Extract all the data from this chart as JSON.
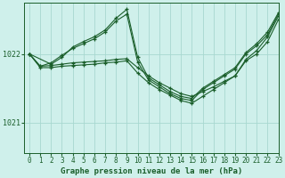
{
  "background_color": "#cff0eb",
  "grid_color": "#a8d8d0",
  "line_color": "#1a5e2a",
  "xlabel": "Graphe pression niveau de la mer (hPa)",
  "xlabel_fontsize": 6.5,
  "ylabel_ticks": [
    1021,
    1022
  ],
  "xlim": [
    -0.5,
    23
  ],
  "ylim": [
    1020.55,
    1022.75
  ],
  "tick_fontsize": 5.5,
  "series": [
    {
      "x": [
        0,
        1,
        2,
        3,
        4,
        5,
        6,
        7,
        8,
        9,
        10,
        11,
        12,
        13,
        14,
        15,
        16,
        17,
        18,
        19,
        20,
        21,
        22,
        23
      ],
      "y": [
        1022.0,
        1021.82,
        1021.83,
        1021.85,
        1021.87,
        1021.88,
        1021.89,
        1021.9,
        1021.92,
        1021.93,
        1021.8,
        1021.68,
        1021.58,
        1021.5,
        1021.42,
        1021.38,
        1021.45,
        1021.52,
        1021.6,
        1021.68,
        1021.9,
        1022.0,
        1022.18,
        1022.5
      ]
    },
    {
      "x": [
        0,
        1,
        2,
        3,
        4,
        5,
        6,
        7,
        8,
        9,
        10,
        11,
        12,
        13,
        14,
        15,
        16,
        17,
        18,
        19,
        20,
        21,
        22,
        23
      ],
      "y": [
        1022.0,
        1021.8,
        1021.8,
        1021.82,
        1021.83,
        1021.84,
        1021.85,
        1021.87,
        1021.88,
        1021.9,
        1021.72,
        1021.58,
        1021.48,
        1021.4,
        1021.32,
        1021.28,
        1021.38,
        1021.48,
        1021.58,
        1021.68,
        1021.92,
        1022.05,
        1022.25,
        1022.55
      ]
    },
    {
      "x": [
        0,
        1,
        2,
        3,
        4,
        5,
        6,
        7,
        8,
        9,
        10,
        11,
        12,
        13,
        14,
        15,
        16,
        17,
        18,
        19,
        20,
        21,
        22,
        23
      ],
      "y": [
        1022.0,
        1021.82,
        1021.87,
        1021.98,
        1022.08,
        1022.15,
        1022.22,
        1022.32,
        1022.48,
        1022.58,
        1021.88,
        1021.62,
        1021.52,
        1021.42,
        1021.35,
        1021.32,
        1021.48,
        1021.58,
        1021.68,
        1021.78,
        1022.0,
        1022.12,
        1022.28,
        1022.58
      ]
    },
    {
      "x": [
        0,
        2,
        3,
        4,
        5,
        6,
        7,
        8,
        9,
        10,
        11,
        12,
        13,
        14,
        15,
        16,
        17,
        18,
        19,
        20,
        21,
        22,
        23
      ],
      "y": [
        1022.0,
        1021.85,
        1021.95,
        1022.1,
        1022.18,
        1022.25,
        1022.35,
        1022.52,
        1022.65,
        1021.95,
        1021.65,
        1021.55,
        1021.45,
        1021.38,
        1021.35,
        1021.5,
        1021.6,
        1021.7,
        1021.8,
        1022.02,
        1022.15,
        1022.32,
        1022.6
      ]
    }
  ]
}
